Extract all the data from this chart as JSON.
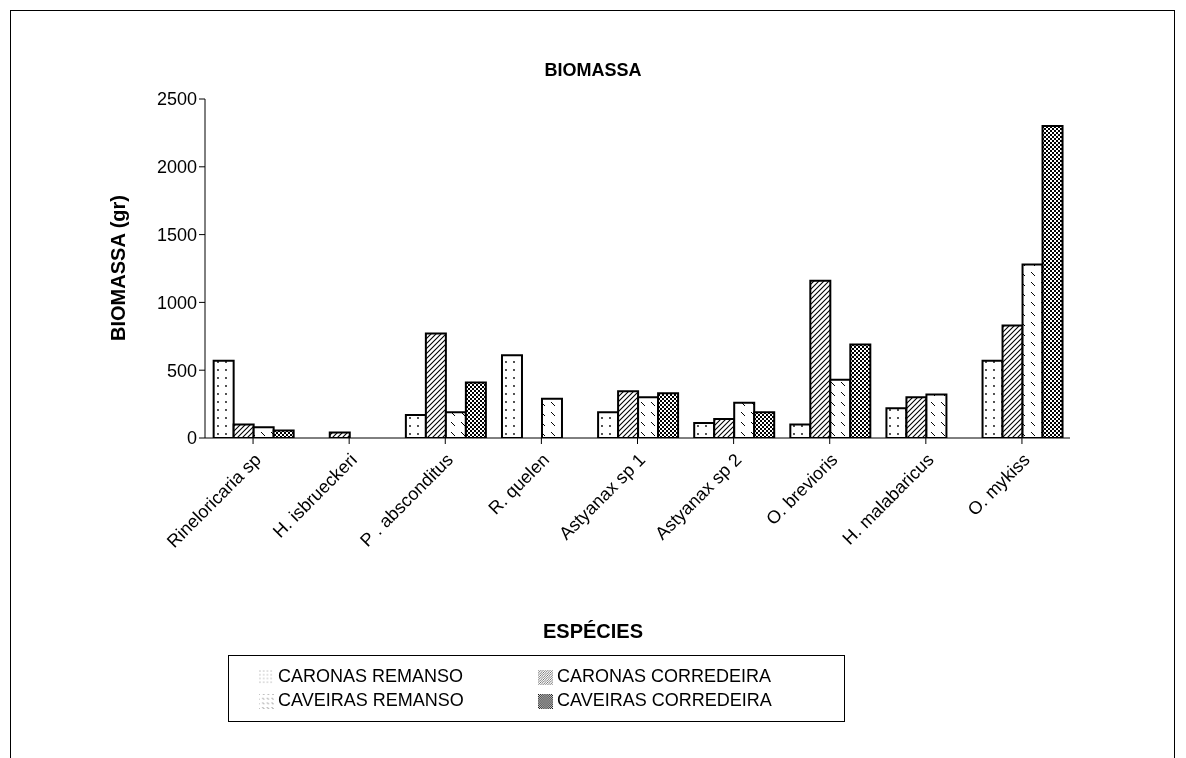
{
  "chart_data": {
    "type": "bar",
    "title": "BIOMASSA",
    "xlabel": "ESPÉCIES",
    "ylabel": "BIOMASSA (gr)",
    "categories": [
      "Rineloricaria sp",
      "H. isbrueckeri",
      "P . absconditus",
      "R. quelen",
      "Astyanax sp 1",
      "Astyanax sp 2",
      "O. brevioris",
      "H. malabaricus",
      "O. mykiss"
    ],
    "series": [
      {
        "name": "CARONAS REMANSO",
        "color": "#000000",
        "values": [
          570,
          null,
          170,
          610,
          190,
          110,
          100,
          220,
          570
        ]
      },
      {
        "name": "CARONAS CORREDEIRA",
        "color": "#000000",
        "values": [
          100,
          40,
          770,
          null,
          345,
          140,
          1160,
          300,
          830
        ]
      },
      {
        "name": "CAVEIRAS REMANSO",
        "color": "#000000",
        "values": [
          80,
          null,
          190,
          290,
          300,
          260,
          430,
          320,
          1280
        ]
      },
      {
        "name": "CAVEIRAS CORREDEIRA",
        "color": "#000000",
        "values": [
          55,
          null,
          410,
          null,
          330,
          190,
          690,
          null,
          2300
        ]
      }
    ],
    "ylim": [
      0,
      2500
    ],
    "yticks": [
      0,
      500,
      1000,
      1500,
      2000,
      2500
    ],
    "grid": false,
    "legend": "bottom"
  }
}
